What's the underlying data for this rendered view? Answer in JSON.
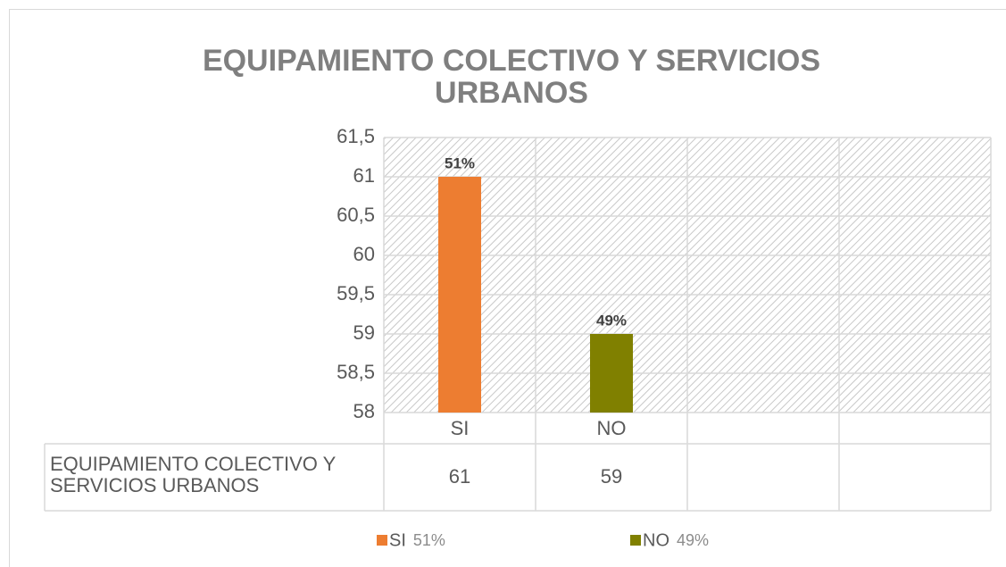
{
  "chart_data": {
    "type": "bar",
    "title": "EQUIPAMIENTO COLECTIVO Y SERVICIOS URBANOS",
    "categories": [
      "SI",
      "NO",
      null,
      null
    ],
    "series": [
      {
        "name": "EQUIPAMIENTO COLECTIVO Y SERVICIOS URBANOS",
        "values": [
          61,
          59,
          null,
          null
        ],
        "colors": [
          "#ed7d31",
          "#808000",
          null,
          null
        ],
        "data_labels": [
          "51%",
          "49%",
          null,
          null
        ]
      }
    ],
    "ylim": [
      58,
      61.5
    ],
    "yticks": [
      58,
      {
        "value": 58.5,
        "label": "58,5"
      },
      59,
      {
        "value": 59.5,
        "label": "59,5"
      },
      60,
      {
        "value": 60.5,
        "label": "60,5"
      },
      61,
      {
        "value": 61.5,
        "label": "61,5"
      }
    ],
    "grid": true,
    "data_table": true,
    "legend": "bottom"
  }
}
